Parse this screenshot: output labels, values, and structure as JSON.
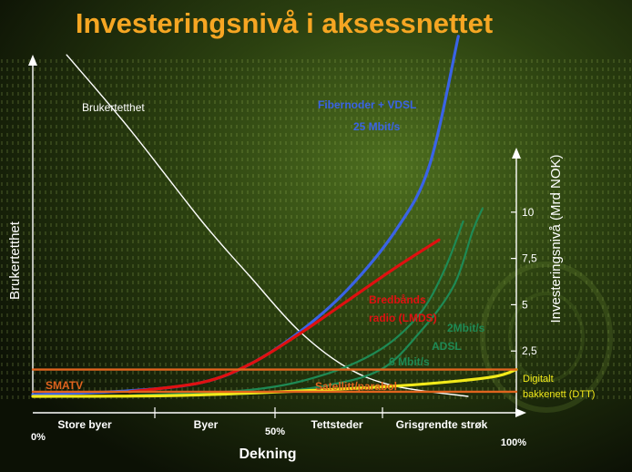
{
  "chart_data": {
    "type": "line",
    "title": "Investeringsnivå i aksessnettet",
    "xlabel": "Dekning",
    "ylabel_left": "Brukertetthet",
    "ylabel_right": "Investeringsnivå (Mrd NOK)",
    "x_range": [
      0,
      100
    ],
    "y_range": [
      0,
      19
    ],
    "x_end_labels": [
      "0%",
      "50%",
      "100%"
    ],
    "x_segments": [
      "Store byer",
      "Byer",
      "Tettsteder",
      "Grisgrendte strøk"
    ],
    "y_ticks": [
      {
        "value": 2.5,
        "label": "2,5"
      },
      {
        "value": 5,
        "label": "5"
      },
      {
        "value": 7.5,
        "label": "7,5"
      },
      {
        "value": 10,
        "label": "10"
      }
    ],
    "series": [
      {
        "name": "Brukertetthet",
        "color": "#ffffff",
        "points": [
          [
            7,
            18.5
          ],
          [
            20,
            14.5
          ],
          [
            35,
            9.5
          ],
          [
            45,
            6.5
          ],
          [
            55,
            3.6
          ],
          [
            65,
            1.6
          ],
          [
            75,
            0.6
          ],
          [
            90,
            0.05
          ]
        ]
      },
      {
        "name": "Fibernoder + VDSL 25 Mbit/s",
        "color": "#3a63e6",
        "points": [
          [
            0,
            0.15
          ],
          [
            20,
            0.35
          ],
          [
            35,
            0.8
          ],
          [
            45,
            1.8
          ],
          [
            55,
            3.5
          ],
          [
            65,
            5.8
          ],
          [
            75,
            9.0
          ],
          [
            82,
            12.5
          ],
          [
            88,
            19.5
          ]
        ]
      },
      {
        "name": "Bredbånds radio (LMDS)",
        "color": "#e01010",
        "points": [
          [
            20,
            0.3
          ],
          [
            35,
            0.8
          ],
          [
            45,
            1.8
          ],
          [
            55,
            3.4
          ],
          [
            65,
            5.2
          ],
          [
            75,
            7.0
          ],
          [
            84,
            8.5
          ]
        ]
      },
      {
        "name": "2Mbit/s ADSL",
        "color": "#1e8a55",
        "points": [
          [
            20,
            0.1
          ],
          [
            45,
            0.4
          ],
          [
            60,
            1.2
          ],
          [
            72,
            2.6
          ],
          [
            80,
            4.5
          ],
          [
            85,
            6.8
          ],
          [
            89,
            9.5
          ]
        ]
      },
      {
        "name": "6 Mbit/s",
        "color": "#1e8a55",
        "points": [
          [
            20,
            0.05
          ],
          [
            45,
            0.2
          ],
          [
            60,
            0.6
          ],
          [
            72,
            1.5
          ],
          [
            80,
            3.5
          ],
          [
            87,
            6.0
          ],
          [
            91,
            9.0
          ],
          [
            93,
            10.2
          ]
        ]
      },
      {
        "name": "Digitalt bakkenett (DTT)",
        "color": "#f2ea1a",
        "points": [
          [
            0,
            0.05
          ],
          [
            30,
            0.1
          ],
          [
            60,
            0.4
          ],
          [
            80,
            0.7
          ],
          [
            95,
            1.1
          ],
          [
            100,
            1.5
          ]
        ]
      },
      {
        "name": "SMATV",
        "color": "#e0641e",
        "points": [
          [
            0,
            1.5
          ],
          [
            100,
            1.5
          ]
        ]
      },
      {
        "name": "Satellitt/parabol",
        "color": "#e0641e",
        "points": [
          [
            0,
            0.3
          ],
          [
            100,
            0.3
          ]
        ]
      }
    ],
    "annotations": [
      {
        "text": "Brukertetthet",
        "color": "#ffffff"
      },
      {
        "text": "Fibernoder + VDSL",
        "color": "#3a63e6"
      },
      {
        "text": "25 Mbit/s",
        "color": "#3a63e6"
      },
      {
        "text": "Bredbånds",
        "color": "#e01010"
      },
      {
        "text": "radio (LMDS)",
        "color": "#e01010"
      },
      {
        "text": "2Mbit/s",
        "color": "#1e8a55"
      },
      {
        "text": "ADSL",
        "color": "#1e8a55"
      },
      {
        "text": "6 Mbit/s",
        "color": "#1e8a55"
      },
      {
        "text": "SMATV",
        "color": "#e0641e"
      },
      {
        "text": "Satellitt/parabol",
        "color": "#e0641e"
      },
      {
        "text": "Digitalt",
        "color": "#f2ea1a"
      },
      {
        "text": "bakkenett (DTT)",
        "color": "#f2ea1a"
      }
    ],
    "grid": false,
    "legend": "none"
  }
}
